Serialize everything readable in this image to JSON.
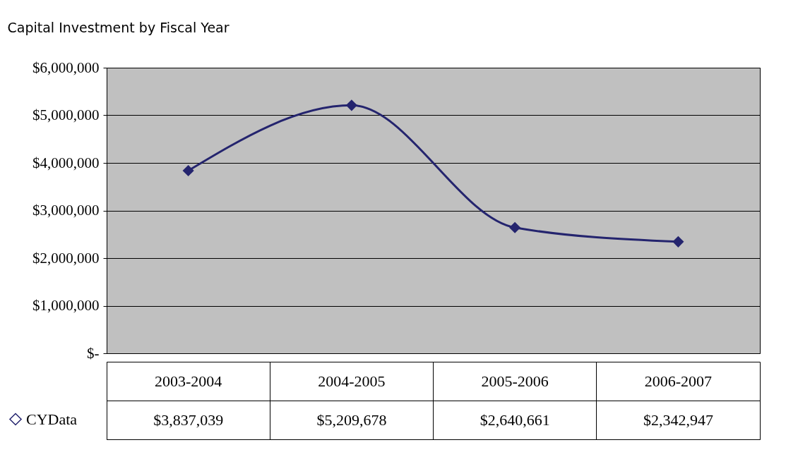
{
  "chart_data": {
    "type": "line",
    "title": "Capital Investment by Fiscal Year",
    "categories": [
      "2003-2004",
      "2004-2005",
      "2005-2006",
      "2006-2007"
    ],
    "series": [
      {
        "name": "CYData",
        "color": "#24246e",
        "values": [
          3837039,
          5209678,
          2640661,
          2342947
        ]
      }
    ],
    "value_labels": [
      "$3,837,039",
      "$5,209,678",
      "$2,640,661",
      "$2,342,947"
    ],
    "ylim": [
      0,
      6000000
    ],
    "yticks": [
      {
        "value": 0,
        "label": "$-"
      },
      {
        "value": 1000000,
        "label": "$1,000,000"
      },
      {
        "value": 2000000,
        "label": "$2,000,000"
      },
      {
        "value": 3000000,
        "label": "$3,000,000"
      },
      {
        "value": 4000000,
        "label": "$4,000,000"
      },
      {
        "value": 5000000,
        "label": "$5,000,000"
      },
      {
        "value": 6000000,
        "label": "$6,000,000"
      }
    ],
    "grid": "y",
    "legend": "bottom left",
    "marker": "diamond",
    "line_style": "solid"
  }
}
